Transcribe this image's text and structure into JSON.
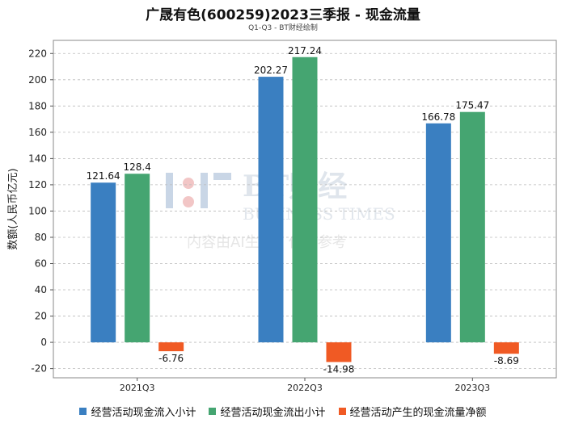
{
  "chart_data": {
    "type": "bar",
    "title": "广晟有色(600259)2023三季报 - 现金流量",
    "subtitle": "Q1-Q3 - BT财经绘制",
    "ylabel": "数额(人民币亿元)",
    "ylim": [
      -27,
      230
    ],
    "yticks": [
      -20,
      0,
      20,
      40,
      60,
      80,
      100,
      120,
      140,
      160,
      180,
      200,
      220
    ],
    "grid": true,
    "legend_position": "bottom",
    "categories": [
      "2021Q3",
      "2022Q3",
      "2023Q3"
    ],
    "series": [
      {
        "name": "经营活动现金流入小计",
        "color": "#3a7fc1",
        "values": [
          121.64,
          202.27,
          166.78
        ]
      },
      {
        "name": "经营活动现金流出小计",
        "color": "#45a571",
        "values": [
          128.4,
          217.24,
          175.47
        ]
      },
      {
        "name": "经营活动产生的现金流量净额",
        "color": "#f05a24",
        "values": [
          -6.76,
          -14.98,
          -8.69
        ]
      }
    ],
    "watermark": {
      "logo": "BT财经",
      "en": "BUSINESS TIMES",
      "note": "内容由AI生成，仅供参考"
    }
  }
}
